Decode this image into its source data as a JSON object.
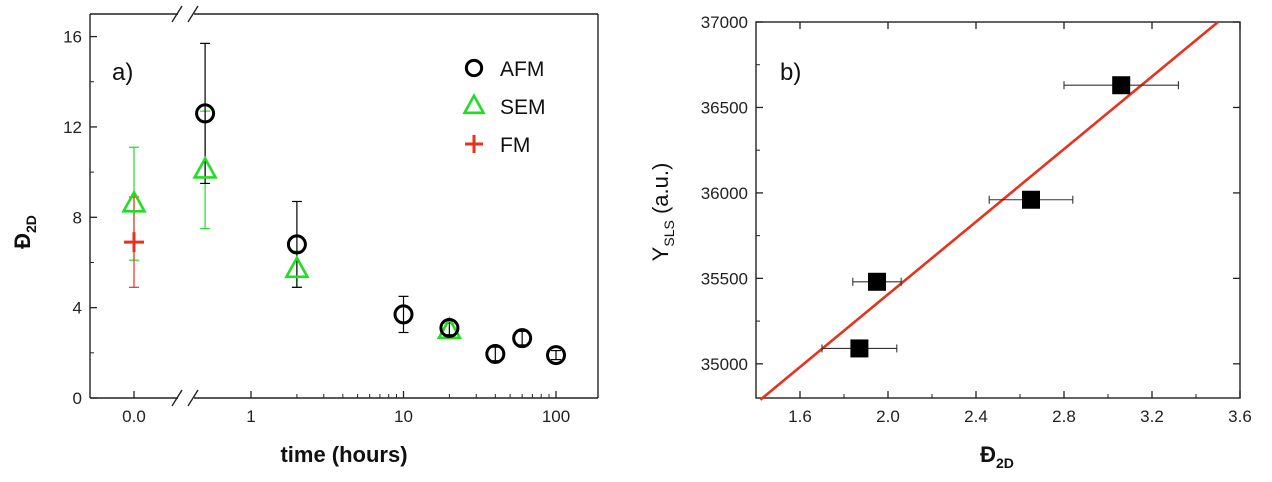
{
  "chart_data": [
    {
      "type": "scatter",
      "panel_label": "a)",
      "xlabel": "time (hours)",
      "ylabel_main": "Đ",
      "ylabel_sub": "2D",
      "ylim": [
        0,
        17
      ],
      "yticks": [
        "0",
        "4",
        "8",
        "12",
        "16"
      ],
      "xticks": [
        "0.0",
        "1",
        "10",
        "100"
      ],
      "x_scale": "broken: linear segment around 0, then log scale from ~0.5 to 100",
      "legend_position": "top-right",
      "grid": false,
      "series": [
        {
          "name": "AFM",
          "marker": "open-circle",
          "color": "#000000",
          "points": [
            {
              "x": 0.5,
              "y": 12.6,
              "err": 3.1
            },
            {
              "x": 2,
              "y": 6.8,
              "err": 1.9
            },
            {
              "x": 10,
              "y": 3.7,
              "err": 0.8
            },
            {
              "x": 20,
              "y": 3.1,
              "err": 0.3
            },
            {
              "x": 40,
              "y": 1.95,
              "err": 0.3
            },
            {
              "x": 60,
              "y": 2.65,
              "err": 0.3
            },
            {
              "x": 100,
              "y": 1.9,
              "err": 0.2
            }
          ]
        },
        {
          "name": "SEM",
          "marker": "open-triangle",
          "color": "#22dd22",
          "points": [
            {
              "x": 0,
              "y": 8.6,
              "err": 2.5
            },
            {
              "x": 0.5,
              "y": 10.1,
              "err": 2.6
            },
            {
              "x": 2,
              "y": 5.7,
              "err": 0.8
            },
            {
              "x": 20,
              "y": 3.0,
              "err": 0.3
            }
          ]
        },
        {
          "name": "FM",
          "marker": "plus",
          "color": "#e8321e",
          "points": [
            {
              "x": 0,
              "y": 6.9,
              "err": 2.0
            }
          ]
        }
      ]
    },
    {
      "type": "scatter",
      "panel_label": "b)",
      "xlabel_main": "Đ",
      "xlabel_sub": "2D",
      "ylabel_main": "Y",
      "ylabel_sub": "SLS",
      "ylabel_suffix": " (a.u.)",
      "xlim": [
        1.4,
        3.6
      ],
      "ylim": [
        34800,
        37000
      ],
      "xticks": [
        "1.6",
        "2.0",
        "2.4",
        "2.8",
        "3.2",
        "3.6"
      ],
      "yticks": [
        "35000",
        "35500",
        "36000",
        "36500",
        "37000"
      ],
      "grid": false,
      "points": [
        {
          "x": 1.87,
          "y": 35090,
          "xerr": 0.17
        },
        {
          "x": 1.95,
          "y": 35480,
          "xerr": 0.11
        },
        {
          "x": 2.65,
          "y": 35960,
          "xerr": 0.19
        },
        {
          "x": 3.06,
          "y": 36630,
          "xerr": 0.26
        }
      ],
      "fit_line": {
        "color": "#e8321e",
        "x": [
          1.42,
          3.5
        ],
        "y": [
          34790,
          37000
        ]
      }
    }
  ]
}
